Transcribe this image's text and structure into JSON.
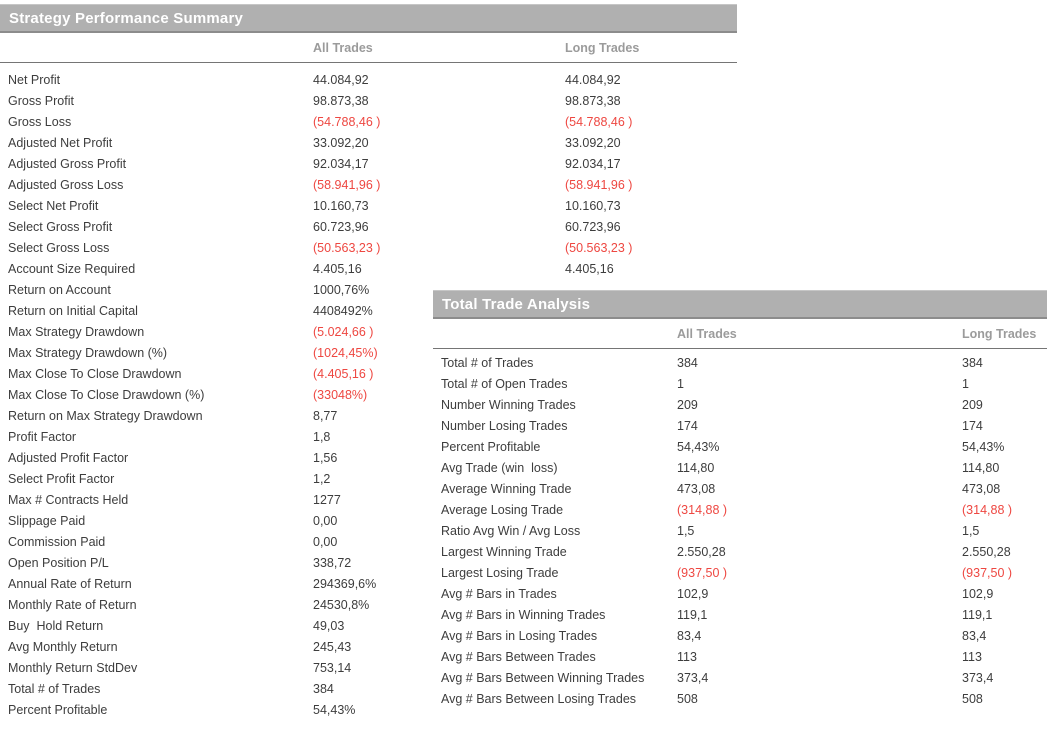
{
  "colors": {
    "title_bar_background": "#b0b0b0",
    "title_bar_text": "#ffffff",
    "column_header_text": "#9b9b9b",
    "body_text": "#3d3d3d",
    "negative_value_text": "#ee4741",
    "divider_line": "#757575",
    "page_background": "#ffffff"
  },
  "strategy_summary": {
    "title": "Strategy Performance Summary",
    "columns": [
      "All Trades",
      "Long Trades"
    ],
    "rows": [
      {
        "label": "Net Profit",
        "all": "44.084,92",
        "long": "44.084,92"
      },
      {
        "label": "Gross Profit",
        "all": "98.873,38",
        "long": "98.873,38"
      },
      {
        "label": "Gross Loss",
        "all": "(54.788,46 )",
        "long": "(54.788,46 )"
      },
      {
        "label": "Adjusted Net Profit",
        "all": "33.092,20",
        "long": "33.092,20"
      },
      {
        "label": "Adjusted Gross Profit",
        "all": "92.034,17",
        "long": "92.034,17"
      },
      {
        "label": "Adjusted Gross Loss",
        "all": "(58.941,96 )",
        "long": "(58.941,96 )"
      },
      {
        "label": "Select Net Profit",
        "all": "10.160,73",
        "long": "10.160,73"
      },
      {
        "label": "Select Gross Profit",
        "all": "60.723,96",
        "long": "60.723,96"
      },
      {
        "label": "Select Gross Loss",
        "all": "(50.563,23 )",
        "long": "(50.563,23 )"
      },
      {
        "label": "Account Size Required",
        "all": "4.405,16",
        "long": "4.405,16"
      },
      {
        "label": "Return on Account",
        "all": "1000,76%",
        "long": ""
      },
      {
        "label": "Return on Initial Capital",
        "all": "4408492%",
        "long": ""
      },
      {
        "label": "Max Strategy Drawdown",
        "all": "(5.024,66 )",
        "long": ""
      },
      {
        "label": "Max Strategy Drawdown (%)",
        "all": "(1024,45%)",
        "long": ""
      },
      {
        "label": "Max Close To Close Drawdown",
        "all": "(4.405,16 )",
        "long": ""
      },
      {
        "label": "Max Close To Close Drawdown (%)",
        "all": "(33048%)",
        "long": ""
      },
      {
        "label": "Return on Max Strategy Drawdown",
        "all": "8,77",
        "long": ""
      },
      {
        "label": "Profit Factor",
        "all": "1,8",
        "long": ""
      },
      {
        "label": "Adjusted Profit Factor",
        "all": "1,56",
        "long": ""
      },
      {
        "label": "Select Profit Factor",
        "all": "1,2",
        "long": ""
      },
      {
        "label": "Max # Contracts Held",
        "all": "1277",
        "long": ""
      },
      {
        "label": "Slippage Paid",
        "all": "0,00",
        "long": ""
      },
      {
        "label": "Commission Paid",
        "all": "0,00",
        "long": ""
      },
      {
        "label": "Open Position P/L",
        "all": "338,72",
        "long": ""
      },
      {
        "label": "Annual Rate of Return",
        "all": "294369,6%",
        "long": ""
      },
      {
        "label": "Monthly Rate of Return",
        "all": "24530,8%",
        "long": ""
      },
      {
        "label": "Buy  Hold Return",
        "all": "49,03",
        "long": ""
      },
      {
        "label": "Avg Monthly Return",
        "all": "245,43",
        "long": ""
      },
      {
        "label": "Monthly Return StdDev",
        "all": "753,14",
        "long": ""
      },
      {
        "label": "Total # of Trades",
        "all": "384",
        "long": ""
      },
      {
        "label": "Percent Profitable",
        "all": "54,43%",
        "long": ""
      }
    ]
  },
  "trade_analysis": {
    "title": "Total Trade Analysis",
    "columns": [
      "All Trades",
      "Long Trades"
    ],
    "rows": [
      {
        "label": "Total # of Trades",
        "all": "384",
        "long": "384"
      },
      {
        "label": "Total # of Open Trades",
        "all": "1",
        "long": "1"
      },
      {
        "label": "Number Winning Trades",
        "all": "209",
        "long": "209"
      },
      {
        "label": "Number Losing Trades",
        "all": "174",
        "long": "174"
      },
      {
        "label": "Percent Profitable",
        "all": "54,43%",
        "long": "54,43%"
      },
      {
        "label": "Avg Trade (win  loss)",
        "all": "114,80",
        "long": "114,80"
      },
      {
        "label": "Average Winning Trade",
        "all": "473,08",
        "long": "473,08"
      },
      {
        "label": "Average Losing Trade",
        "all": "(314,88 )",
        "long": "(314,88 )"
      },
      {
        "label": "Ratio Avg Win / Avg Loss",
        "all": "1,5",
        "long": "1,5"
      },
      {
        "label": "Largest Winning Trade",
        "all": "2.550,28",
        "long": "2.550,28"
      },
      {
        "label": "Largest Losing Trade",
        "all": "(937,50 )",
        "long": "(937,50 )"
      },
      {
        "label": "Avg # Bars in Trades",
        "all": "102,9",
        "long": "102,9"
      },
      {
        "label": "Avg # Bars in Winning Trades",
        "all": "119,1",
        "long": "119,1"
      },
      {
        "label": "Avg # Bars in Losing Trades",
        "all": "83,4",
        "long": "83,4"
      },
      {
        "label": "Avg # Bars Between Trades",
        "all": "113",
        "long": "113"
      },
      {
        "label": "Avg # Bars Between Winning Trades",
        "all": "373,4",
        "long": "373,4"
      },
      {
        "label": "Avg # Bars Between Losing Trades",
        "all": "508",
        "long": "508"
      }
    ]
  }
}
